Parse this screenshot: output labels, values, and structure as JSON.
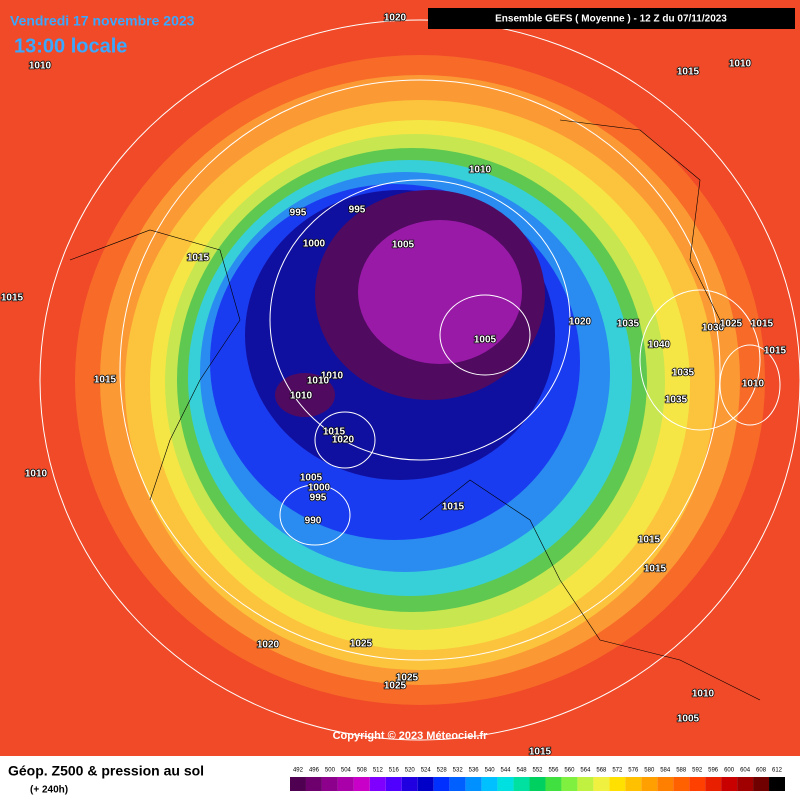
{
  "header": {
    "date": "Vendredi 17 novembre 2023",
    "time": "13:00 locale",
    "model": "Ensemble GEFS  ( Moyenne )  -  12 Z du 07/11/2023"
  },
  "isobar_labels": [
    "1020",
    "1010",
    "1015",
    "1010",
    "1010",
    "995",
    "995",
    "1000",
    "1005",
    "1015",
    "1015",
    "1020",
    "1035",
    "1030",
    "1025",
    "1015",
    "1005",
    "1040",
    "1015",
    "1015",
    "1010",
    "1010",
    "1035",
    "1010",
    "1010",
    "1035",
    "1015",
    "1020",
    "1010",
    "1005",
    "1000",
    "995",
    "1015",
    "990",
    "1015",
    "1015",
    "1020",
    "1025",
    "1025",
    "1025",
    "1010",
    "1005",
    "1015"
  ],
  "copyright": "Copyright © 2023 Méteociel.fr",
  "legend": {
    "title": "Géop. Z500 & pression au sol",
    "lead_time": "(+ 240h)",
    "scale": {
      "labels": [
        "492",
        "496",
        "500",
        "504",
        "508",
        "512",
        "516",
        "520",
        "524",
        "528",
        "532",
        "536",
        "540",
        "544",
        "548",
        "552",
        "556",
        "560",
        "564",
        "568",
        "572",
        "576",
        "580",
        "584",
        "588",
        "592",
        "596",
        "600",
        "604",
        "608",
        "612"
      ],
      "colors": [
        "#500050",
        "#6e006e",
        "#8c008c",
        "#aa00aa",
        "#c800c8",
        "#8000ff",
        "#5000ff",
        "#2000e0",
        "#0000c8",
        "#0030ff",
        "#0060ff",
        "#0090ff",
        "#00c0ff",
        "#00e0e0",
        "#00e0a0",
        "#00d060",
        "#40e040",
        "#80f040",
        "#c0f040",
        "#f0f040",
        "#ffe000",
        "#ffc000",
        "#ffa000",
        "#ff8000",
        "#ff6000",
        "#ff4000",
        "#e82000",
        "#c80000",
        "#a00000",
        "#700000",
        "#000000"
      ]
    }
  }
}
